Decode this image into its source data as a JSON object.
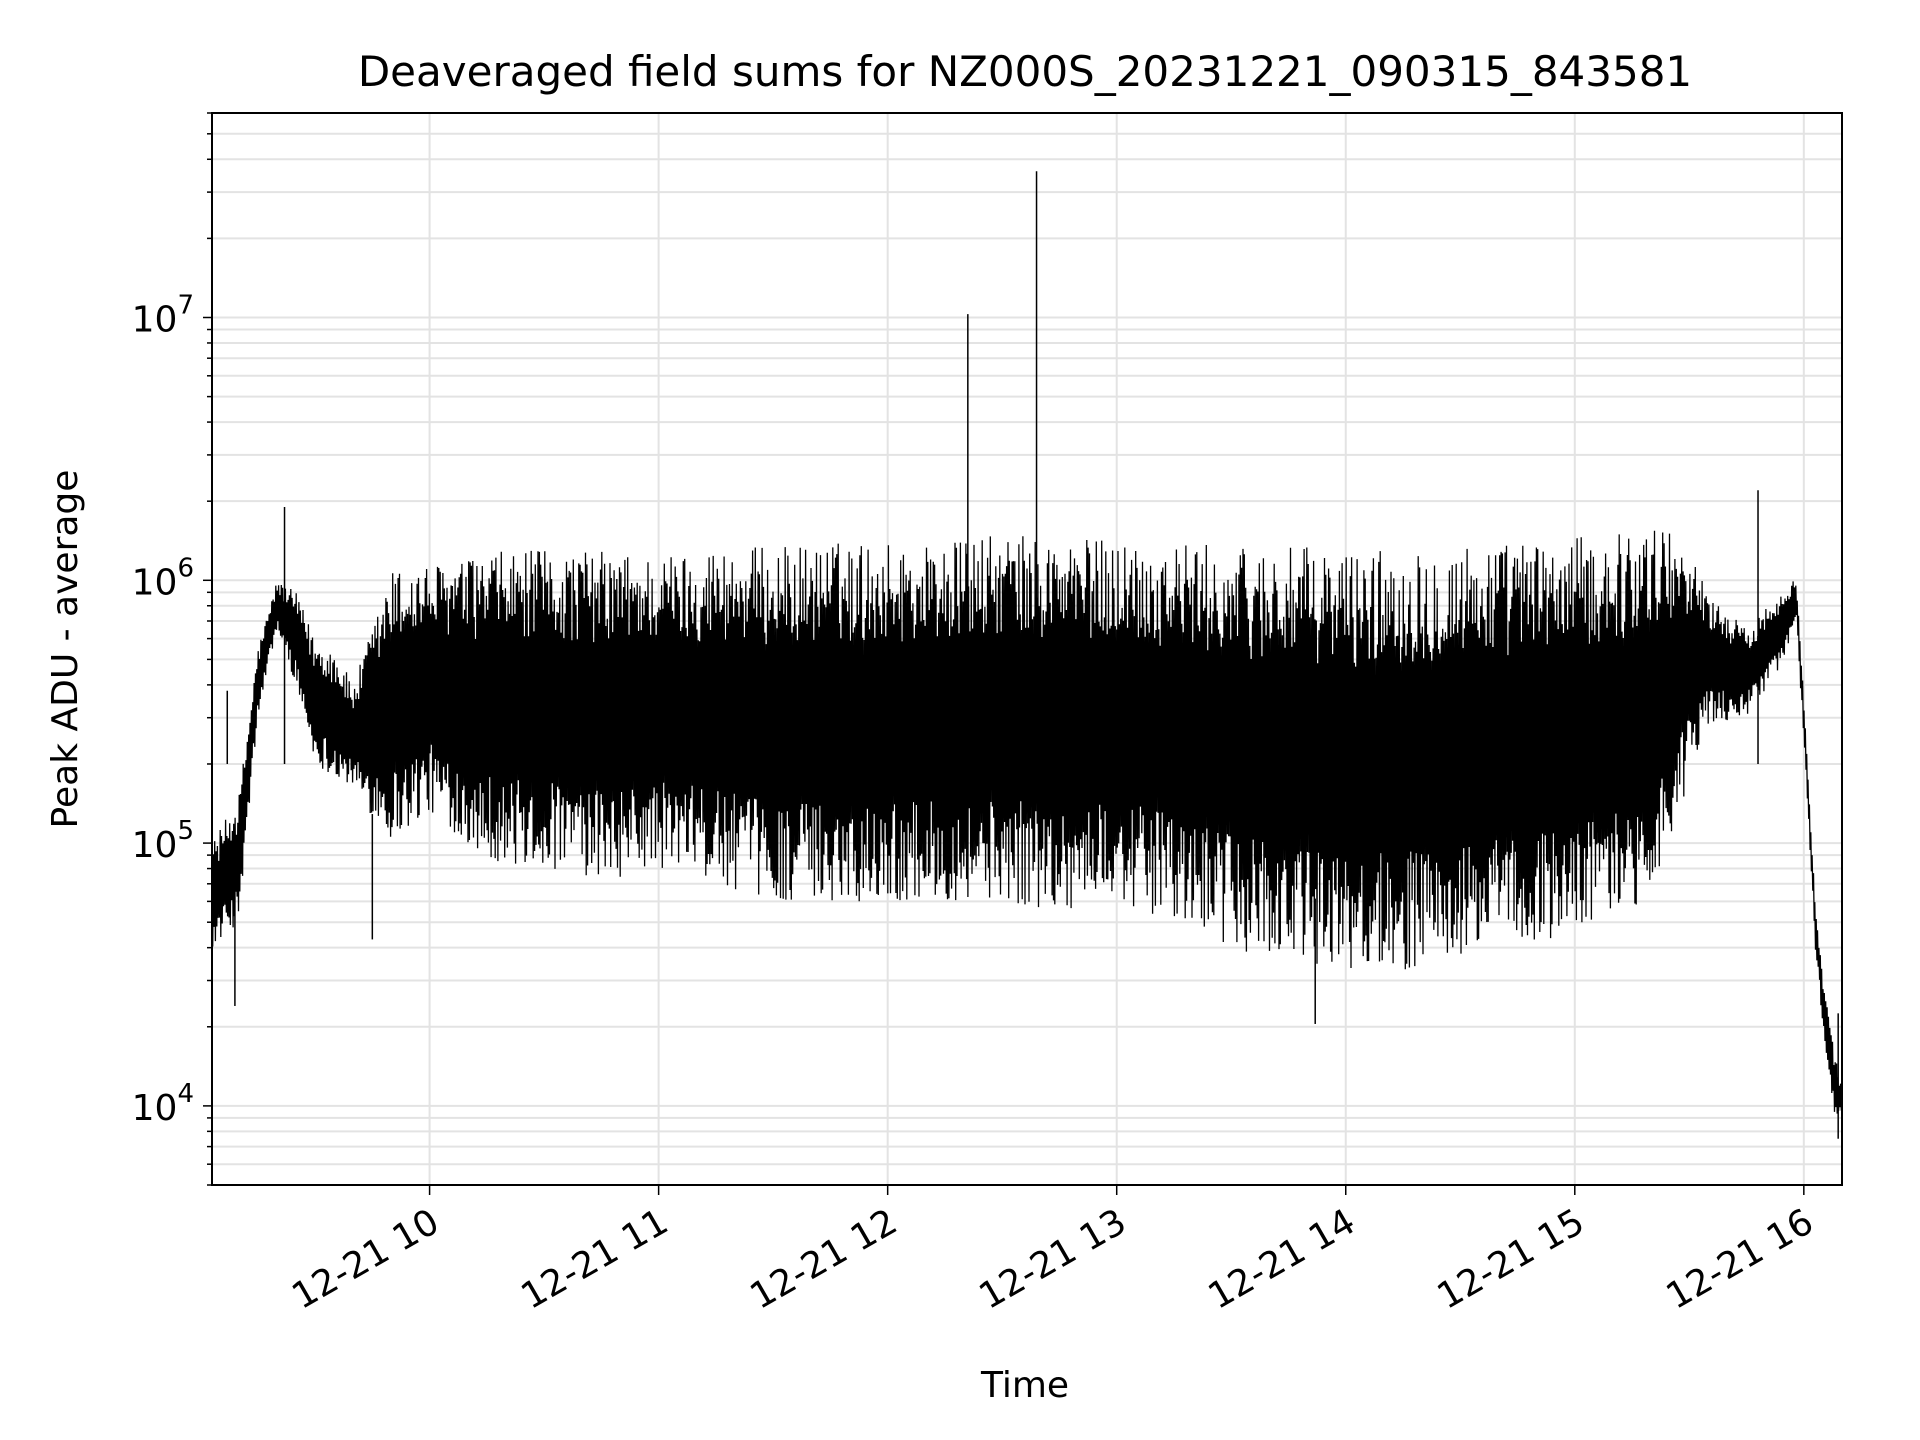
{
  "chart_data": {
    "type": "line",
    "title": "Deaveraged field sums for NZ000S_20231221_090315_843581",
    "xlabel": "Time",
    "ylabel": "Peak ADU - average",
    "x_range": [
      "2023-12-21T09:03",
      "2023-12-21T16:10"
    ],
    "x_ticks": [
      {
        "value": "2023-12-21T10:00",
        "label": "12-21 10"
      },
      {
        "value": "2023-12-21T11:00",
        "label": "12-21 11"
      },
      {
        "value": "2023-12-21T12:00",
        "label": "12-21 12"
      },
      {
        "value": "2023-12-21T13:00",
        "label": "12-21 13"
      },
      {
        "value": "2023-12-21T14:00",
        "label": "12-21 14"
      },
      {
        "value": "2023-12-21T15:00",
        "label": "12-21 15"
      },
      {
        "value": "2023-12-21T16:00",
        "label": "12-21 16"
      }
    ],
    "y_scale": "log",
    "ylim": [
      5000,
      60000000
    ],
    "y_ticks": [
      {
        "value": 10000,
        "base": "10",
        "exp": "4"
      },
      {
        "value": 100000,
        "base": "10",
        "exp": "5"
      },
      {
        "value": 1000000,
        "base": "10",
        "exp": "6"
      },
      {
        "value": 10000000,
        "base": "10",
        "exp": "7"
      }
    ],
    "grid": true,
    "line_color": "#000000",
    "series": [
      {
        "style": "rapid oscillation between an upper and a lower envelope",
        "x": [
          "2023-12-21T09:03",
          "2023-12-21T09:10",
          "2023-12-21T09:15",
          "2023-12-21T09:20",
          "2023-12-21T09:25",
          "2023-12-21T09:30",
          "2023-12-21T09:35",
          "2023-12-21T09:40",
          "2023-12-21T09:50",
          "2023-12-21T10:00",
          "2023-12-21T10:10",
          "2023-12-21T10:20",
          "2023-12-21T10:30",
          "2023-12-21T10:45",
          "2023-12-21T11:00",
          "2023-12-21T11:15",
          "2023-12-21T11:30",
          "2023-12-21T11:45",
          "2023-12-21T12:00",
          "2023-12-21T12:15",
          "2023-12-21T12:30",
          "2023-12-21T12:45",
          "2023-12-21T13:00",
          "2023-12-21T13:15",
          "2023-12-21T13:30",
          "2023-12-21T13:45",
          "2023-12-21T14:00",
          "2023-12-21T14:15",
          "2023-12-21T14:30",
          "2023-12-21T14:45",
          "2023-12-21T15:00",
          "2023-12-21T15:15",
          "2023-12-21T15:25",
          "2023-12-21T15:30",
          "2023-12-21T15:35",
          "2023-12-21T15:45",
          "2023-12-21T15:55",
          "2023-12-21T15:58",
          "2023-12-21T16:00",
          "2023-12-21T16:03",
          "2023-12-21T16:05",
          "2023-12-21T16:08",
          "2023-12-21T16:10"
        ],
        "upper": [
          100000,
          150000,
          550000,
          1000000,
          900000,
          600000,
          550000,
          400000,
          1100000,
          1150000,
          1200000,
          1300000,
          1300000,
          1300000,
          1250000,
          1350000,
          1350000,
          1400000,
          1400000,
          1400000,
          1500000,
          1450000,
          1450000,
          1400000,
          1350000,
          1350000,
          1300000,
          1350000,
          1400000,
          1400000,
          1450000,
          1550000,
          1600000,
          1300000,
          900000,
          650000,
          950000,
          1050000,
          350000,
          60000,
          30000,
          16000,
          12000
        ],
        "lower": [
          40000,
          50000,
          300000,
          650000,
          400000,
          200000,
          180000,
          160000,
          100000,
          130000,
          100000,
          80000,
          80000,
          70000,
          80000,
          70000,
          60000,
          60000,
          60000,
          60000,
          60000,
          55000,
          60000,
          50000,
          40000,
          35000,
          33000,
          33000,
          35000,
          40000,
          45000,
          55000,
          90000,
          180000,
          280000,
          300000,
          500000,
          700000,
          250000,
          40000,
          20000,
          9000,
          9000
        ]
      }
    ],
    "spikes": [
      {
        "x": "2023-12-21T09:07",
        "y": 380000
      },
      {
        "x": "2023-12-21T09:22",
        "y": 1900000
      },
      {
        "x": "2023-12-21T12:21",
        "y": 10300000
      },
      {
        "x": "2023-12-21T12:39",
        "y": 36000000
      },
      {
        "x": "2023-12-21T15:48",
        "y": 2200000
      }
    ],
    "dips": [
      {
        "x": "2023-12-21T09:09",
        "y": 24000
      },
      {
        "x": "2023-12-21T09:45",
        "y": 43000
      },
      {
        "x": "2023-12-21T13:52",
        "y": 20500
      },
      {
        "x": "2023-12-21T16:09",
        "y": 7500
      }
    ]
  }
}
